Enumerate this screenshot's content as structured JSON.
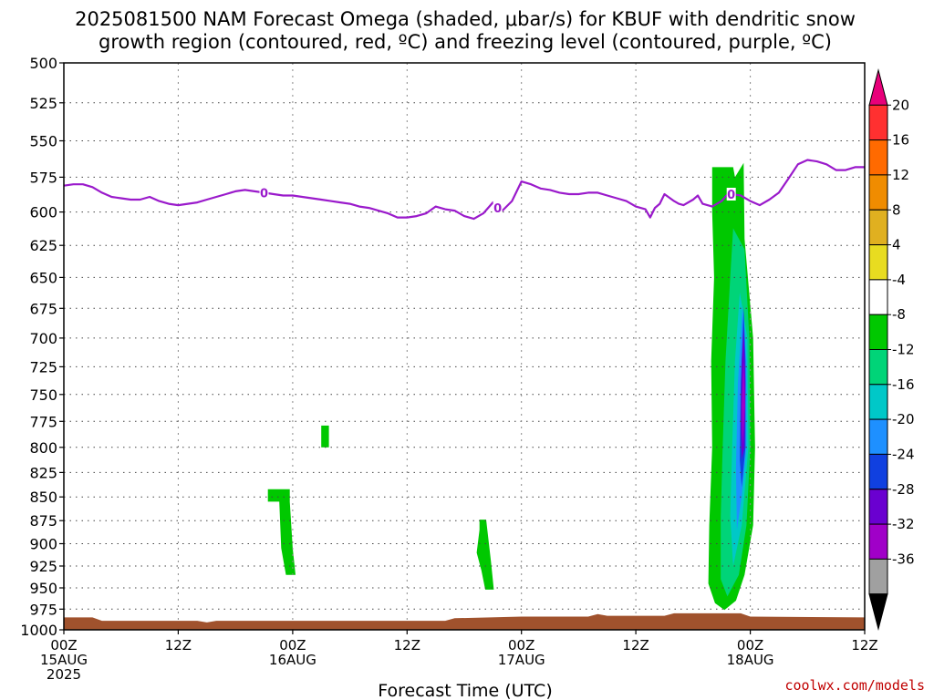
{
  "chart_data": {
    "type": "heatmap",
    "title_lines": [
      "2025081500 NAM Forecast Omega (shaded, μbar/s) for KBUF with dendritic snow",
      "growth region (contoured, red, ºC) and freezing level (contoured, purple, ºC)"
    ],
    "xlabel": "Forecast Time (UTC)",
    "credit": "coolwx.com/models",
    "y_ticks": [
      500,
      525,
      550,
      575,
      600,
      625,
      650,
      675,
      700,
      725,
      750,
      775,
      800,
      825,
      850,
      875,
      900,
      925,
      950,
      975,
      1000
    ],
    "ylim": [
      500,
      1000
    ],
    "y_scale": "log-pressure",
    "xlim_hours": [
      0,
      84
    ],
    "x_ticks": [
      {
        "hour": 0,
        "lines": [
          "00Z",
          "15AUG",
          "2025"
        ]
      },
      {
        "hour": 12,
        "lines": [
          "12Z"
        ]
      },
      {
        "hour": 24,
        "lines": [
          "00Z",
          "16AUG"
        ]
      },
      {
        "hour": 36,
        "lines": [
          "12Z"
        ]
      },
      {
        "hour": 48,
        "lines": [
          "00Z",
          "17AUG"
        ]
      },
      {
        "hour": 60,
        "lines": [
          "12Z"
        ]
      },
      {
        "hour": 72,
        "lines": [
          "00Z",
          "18AUG"
        ]
      },
      {
        "hour": 84,
        "lines": [
          "12Z"
        ]
      }
    ],
    "grid": true,
    "colorbar": {
      "placement": "right",
      "labels": [
        "20",
        "16",
        "12",
        "8",
        "4",
        "-4",
        "-8",
        "-12",
        "-16",
        "-20",
        "-24",
        "-28",
        "-32",
        "-36"
      ],
      "bins": [
        {
          "color": "#e8007a"
        },
        {
          "color": "#ff3030"
        },
        {
          "color": "#ff6a00"
        },
        {
          "color": "#f08c00"
        },
        {
          "color": "#e0b020"
        },
        {
          "color": "#e8dc20"
        },
        {
          "color": "#ffffff"
        },
        {
          "color": "#00c800"
        },
        {
          "color": "#00d478"
        },
        {
          "color": "#00c8c8"
        },
        {
          "color": "#1e90ff"
        },
        {
          "color": "#1040e0"
        },
        {
          "color": "#6a00d0"
        },
        {
          "color": "#a000c8"
        },
        {
          "color": "#a0a0a0"
        },
        {
          "color": "#000000"
        }
      ]
    },
    "freezing_level": {
      "name": "0",
      "color": "#9a1acb",
      "label_hours": [
        21,
        45.5,
        70
      ],
      "points": [
        [
          0,
          581
        ],
        [
          1,
          580
        ],
        [
          2,
          580
        ],
        [
          3,
          582
        ],
        [
          4,
          586
        ],
        [
          5,
          589
        ],
        [
          6,
          590
        ],
        [
          7,
          591
        ],
        [
          8,
          591
        ],
        [
          9,
          589
        ],
        [
          10,
          592
        ],
        [
          11,
          594
        ],
        [
          12,
          595
        ],
        [
          13,
          594
        ],
        [
          14,
          593
        ],
        [
          15,
          591
        ],
        [
          16,
          589
        ],
        [
          17,
          587
        ],
        [
          18,
          585
        ],
        [
          19,
          584
        ],
        [
          20,
          585
        ],
        [
          21,
          586
        ],
        [
          22,
          587
        ],
        [
          23,
          588
        ],
        [
          24,
          588
        ],
        [
          25,
          589
        ],
        [
          26,
          590
        ],
        [
          27,
          591
        ],
        [
          28,
          592
        ],
        [
          29,
          593
        ],
        [
          30,
          594
        ],
        [
          31,
          596
        ],
        [
          32,
          597
        ],
        [
          33,
          599
        ],
        [
          34,
          601
        ],
        [
          35,
          604
        ],
        [
          36,
          604
        ],
        [
          37,
          603
        ],
        [
          38,
          601
        ],
        [
          39,
          596
        ],
        [
          40,
          598
        ],
        [
          41,
          599
        ],
        [
          42,
          603
        ],
        [
          43,
          605
        ],
        [
          44,
          601
        ],
        [
          45,
          593
        ],
        [
          45.5,
          597
        ],
        [
          46,
          599
        ],
        [
          47,
          592
        ],
        [
          48,
          578
        ],
        [
          49,
          580
        ],
        [
          50,
          583
        ],
        [
          51,
          584
        ],
        [
          52,
          586
        ],
        [
          53,
          587
        ],
        [
          54,
          587
        ],
        [
          55,
          586
        ],
        [
          56,
          586
        ],
        [
          57,
          588
        ],
        [
          58,
          590
        ],
        [
          59,
          592
        ],
        [
          60,
          596
        ],
        [
          61,
          598
        ],
        [
          61.5,
          604
        ],
        [
          62,
          597
        ],
        [
          62.5,
          594
        ],
        [
          63,
          587
        ],
        [
          64,
          592
        ],
        [
          64.5,
          594
        ],
        [
          65,
          595
        ],
        [
          66,
          591
        ],
        [
          66.5,
          588
        ],
        [
          67,
          594
        ],
        [
          68,
          596
        ],
        [
          69,
          592
        ],
        [
          69.5,
          588
        ],
        [
          70,
          587
        ],
        [
          71,
          588
        ],
        [
          72,
          592
        ],
        [
          73,
          595
        ],
        [
          74,
          591
        ],
        [
          75,
          586
        ],
        [
          76,
          576
        ],
        [
          77,
          566
        ],
        [
          78,
          563
        ],
        [
          79,
          564
        ],
        [
          80,
          566
        ],
        [
          81,
          570
        ],
        [
          82,
          570
        ],
        [
          83,
          568
        ],
        [
          84,
          568
        ]
      ]
    },
    "omega_regions": [
      {
        "color": "#00c800",
        "points": [
          [
            21.4,
            842
          ],
          [
            23.7,
            842
          ],
          [
            23.7,
            855
          ],
          [
            24.0,
            905
          ],
          [
            24.3,
            935
          ],
          [
            23.3,
            935
          ],
          [
            22.8,
            905
          ],
          [
            22.6,
            855
          ],
          [
            21.4,
            855
          ]
        ]
      },
      {
        "color": "#00c800",
        "points": [
          [
            27.0,
            779
          ],
          [
            27.8,
            779
          ],
          [
            27.8,
            800
          ],
          [
            27.0,
            800
          ]
        ]
      },
      {
        "color": "#00c800",
        "points": [
          [
            43.6,
            874
          ],
          [
            44.3,
            874
          ],
          [
            44.8,
            920
          ],
          [
            45.1,
            952
          ],
          [
            44.2,
            952
          ],
          [
            43.8,
            930
          ],
          [
            43.3,
            910
          ],
          [
            43.6,
            885
          ]
        ]
      },
      {
        "color": "#00c800",
        "points": [
          [
            68.0,
            568
          ],
          [
            70.2,
            568
          ],
          [
            70.4,
            575
          ],
          [
            71.3,
            565
          ],
          [
            71.4,
            620
          ],
          [
            72.3,
            700
          ],
          [
            72.5,
            800
          ],
          [
            72.3,
            880
          ],
          [
            71.4,
            935
          ],
          [
            70.5,
            965
          ],
          [
            69.3,
            976
          ],
          [
            68.3,
            968
          ],
          [
            67.6,
            945
          ],
          [
            67.7,
            880
          ],
          [
            68.0,
            800
          ],
          [
            67.9,
            720
          ],
          [
            68.2,
            650
          ],
          [
            68.0,
            600
          ]
        ]
      },
      {
        "color": "#00d478",
        "points": [
          [
            70.2,
            612
          ],
          [
            71.4,
            628
          ],
          [
            71.9,
            700
          ],
          [
            72.0,
            800
          ],
          [
            71.6,
            880
          ],
          [
            70.8,
            935
          ],
          [
            69.6,
            960
          ],
          [
            68.9,
            940
          ],
          [
            68.9,
            870
          ],
          [
            69.1,
            800
          ],
          [
            69.4,
            720
          ],
          [
            69.9,
            650
          ]
        ]
      },
      {
        "color": "#00c8c8",
        "points": [
          [
            70.9,
            662
          ],
          [
            71.7,
            700
          ],
          [
            71.8,
            800
          ],
          [
            71.1,
            880
          ],
          [
            70.2,
            925
          ],
          [
            69.9,
            870
          ],
          [
            70.1,
            800
          ],
          [
            70.4,
            720
          ]
        ]
      },
      {
        "color": "#1e90ff",
        "points": [
          [
            71.2,
            672
          ],
          [
            71.6,
            720
          ],
          [
            71.6,
            800
          ],
          [
            71.1,
            850
          ],
          [
            70.6,
            885
          ],
          [
            70.5,
            820
          ],
          [
            70.7,
            740
          ]
        ]
      },
      {
        "color": "#1040e0",
        "points": [
          [
            71.3,
            675
          ],
          [
            71.5,
            720
          ],
          [
            71.5,
            800
          ],
          [
            71.1,
            840
          ],
          [
            70.9,
            812
          ],
          [
            71.0,
            740
          ]
        ]
      },
      {
        "color": "#6a00d0",
        "points": [
          [
            71.3,
            690
          ],
          [
            71.5,
            740
          ],
          [
            71.4,
            800
          ],
          [
            71.1,
            812
          ],
          [
            71.0,
            780
          ],
          [
            71.1,
            720
          ]
        ]
      },
      {
        "color": "#a000c8",
        "points": [
          [
            71.3,
            720
          ],
          [
            71.45,
            760
          ],
          [
            71.2,
            798
          ],
          [
            71.1,
            760
          ]
        ]
      }
    ],
    "ground": {
      "color": "#a0522d",
      "points": [
        [
          0,
          985
        ],
        [
          3,
          985
        ],
        [
          4,
          989
        ],
        [
          14,
          989
        ],
        [
          15,
          991
        ],
        [
          16,
          989
        ],
        [
          40,
          989
        ],
        [
          41,
          986
        ],
        [
          48,
          984
        ],
        [
          55,
          984
        ],
        [
          56,
          981
        ],
        [
          57,
          983
        ],
        [
          63,
          983
        ],
        [
          64,
          980
        ],
        [
          71,
          980
        ],
        [
          72,
          984
        ],
        [
          84,
          985
        ]
      ]
    }
  }
}
